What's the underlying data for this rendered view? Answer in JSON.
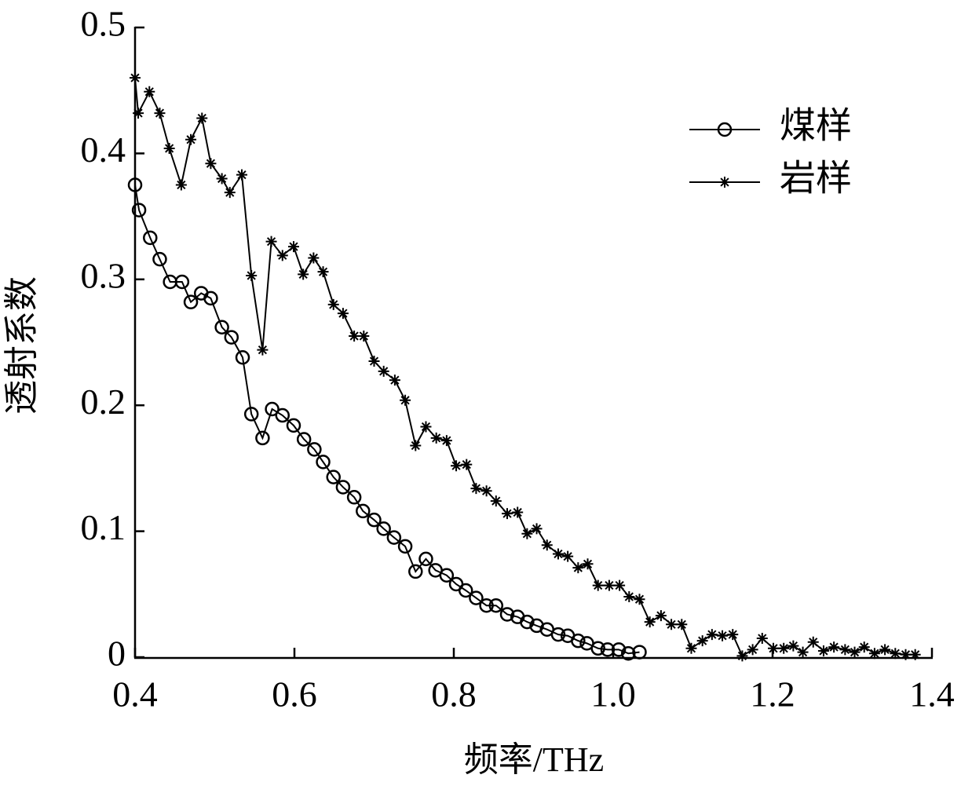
{
  "chart_data": {
    "type": "line",
    "xlabel": "频率/THz",
    "ylabel": "透射系数",
    "xlim": [
      0.4,
      1.4
    ],
    "ylim": [
      0,
      0.5
    ],
    "xticks": [
      0.4,
      0.6,
      0.8,
      {
        "value": 1,
        "label": "1.0"
      },
      1.2,
      1.4
    ],
    "yticks": [
      0,
      0.1,
      0.2,
      0.3,
      0.4,
      0.5
    ],
    "legend": "upper right",
    "series": [
      {
        "name": "煤样",
        "color": "#000000",
        "marker": "circle",
        "x": [
          0.4,
          0.405,
          0.419,
          0.431,
          0.444,
          0.459,
          0.47,
          0.483,
          0.495,
          0.509,
          0.521,
          0.535,
          0.546,
          0.56,
          0.572,
          0.585,
          0.599,
          0.612,
          0.625,
          0.636,
          0.649,
          0.661,
          0.675,
          0.686,
          0.7,
          0.712,
          0.725,
          0.739,
          0.752,
          0.765,
          0.777,
          0.791,
          0.803,
          0.815,
          0.828,
          0.841,
          0.853,
          0.867,
          0.88,
          0.892,
          0.904,
          0.917,
          0.931,
          0.943,
          0.956,
          0.967,
          0.981,
          0.993,
          1.007,
          1.019,
          1.033
        ],
        "values": [
          0.375,
          0.355,
          0.333,
          0.316,
          0.298,
          0.298,
          0.282,
          0.289,
          0.285,
          0.262,
          0.254,
          0.238,
          0.193,
          0.174,
          0.197,
          0.192,
          0.184,
          0.173,
          0.165,
          0.155,
          0.143,
          0.135,
          0.127,
          0.116,
          0.109,
          0.102,
          0.095,
          0.088,
          0.068,
          0.078,
          0.069,
          0.065,
          0.058,
          0.053,
          0.047,
          0.041,
          0.041,
          0.034,
          0.032,
          0.028,
          0.025,
          0.022,
          0.018,
          0.017,
          0.013,
          0.011,
          0.007,
          0.006,
          0.006,
          0.003,
          0.004
        ]
      },
      {
        "name": "岩样",
        "color": "#000000",
        "marker": "star",
        "x": [
          0.4,
          0.404,
          0.418,
          0.431,
          0.443,
          0.458,
          0.47,
          0.484,
          0.495,
          0.509,
          0.519,
          0.534,
          0.546,
          0.56,
          0.571,
          0.585,
          0.599,
          0.611,
          0.624,
          0.636,
          0.649,
          0.661,
          0.675,
          0.687,
          0.7,
          0.712,
          0.726,
          0.739,
          0.752,
          0.765,
          0.778,
          0.791,
          0.803,
          0.816,
          0.828,
          0.841,
          0.853,
          0.867,
          0.88,
          0.892,
          0.904,
          0.917,
          0.931,
          0.943,
          0.956,
          0.968,
          0.981,
          0.995,
          1.008,
          1.02,
          1.033,
          1.046,
          1.06,
          1.073,
          1.086,
          1.098,
          1.112,
          1.124,
          1.137,
          1.15,
          1.162,
          1.175,
          1.187,
          1.201,
          1.214,
          1.226,
          1.238,
          1.251,
          1.264,
          1.277,
          1.291,
          1.303,
          1.315,
          1.328,
          1.341,
          1.354,
          1.367,
          1.379
        ],
        "values": [
          0.46,
          0.432,
          0.449,
          0.432,
          0.404,
          0.375,
          0.411,
          0.428,
          0.392,
          0.38,
          0.369,
          0.383,
          0.303,
          0.244,
          0.33,
          0.319,
          0.326,
          0.304,
          0.317,
          0.306,
          0.28,
          0.273,
          0.255,
          0.255,
          0.235,
          0.227,
          0.22,
          0.204,
          0.168,
          0.183,
          0.174,
          0.172,
          0.152,
          0.153,
          0.134,
          0.132,
          0.124,
          0.114,
          0.115,
          0.098,
          0.102,
          0.089,
          0.082,
          0.08,
          0.071,
          0.074,
          0.057,
          0.057,
          0.057,
          0.048,
          0.046,
          0.028,
          0.033,
          0.026,
          0.026,
          0.007,
          0.013,
          0.018,
          0.017,
          0.018,
          0.001,
          0.006,
          0.015,
          0.007,
          0.007,
          0.009,
          0.004,
          0.012,
          0.005,
          0.008,
          0.006,
          0.004,
          0.008,
          0.003,
          0.006,
          0.003,
          0.002,
          0.002
        ]
      }
    ]
  }
}
